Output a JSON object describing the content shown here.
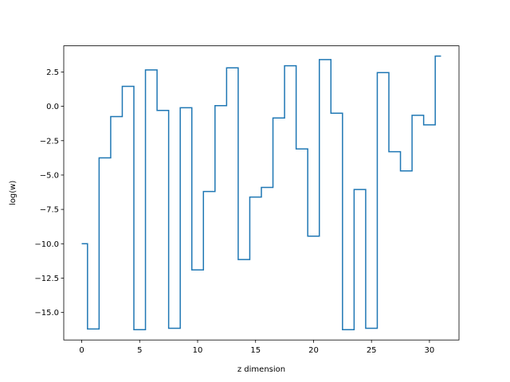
{
  "chart_data": {
    "type": "line",
    "step": "mid",
    "title": "",
    "xlabel": "z dimension",
    "ylabel": "log(w)",
    "xlim": [
      -1.55,
      32.55
    ],
    "ylim": [
      -17.0,
      4.4
    ],
    "xticks": [
      0,
      5,
      10,
      15,
      20,
      25,
      30
    ],
    "xtick_labels": [
      "0",
      "5",
      "10",
      "15",
      "20",
      "25",
      "30"
    ],
    "yticks": [
      2.5,
      0.0,
      -2.5,
      -5.0,
      -7.5,
      -10.0,
      -12.5,
      -15.0
    ],
    "ytick_labels": [
      "2.5",
      "0.0",
      "−2.5",
      "−5.0",
      "−7.5",
      "−10.0",
      "−12.5",
      "−15.0"
    ],
    "grid": false,
    "series": [
      {
        "color": "#1f77b4",
        "x": [
          0,
          1,
          2,
          3,
          4,
          5,
          6,
          7,
          8,
          9,
          10,
          11,
          12,
          13,
          14,
          15,
          16,
          17,
          18,
          19,
          20,
          21,
          22,
          23,
          24,
          25,
          26,
          27,
          28,
          29,
          30,
          31
        ],
        "y": [
          -10.0,
          -16.2,
          -3.75,
          -0.75,
          1.45,
          -16.25,
          2.65,
          -0.3,
          -16.15,
          -0.1,
          -11.9,
          -6.2,
          0.05,
          2.8,
          -11.15,
          -6.6,
          -5.9,
          -0.85,
          2.95,
          -3.1,
          -9.45,
          3.4,
          -0.5,
          -16.25,
          -6.05,
          -16.15,
          2.45,
          -3.3,
          -4.7,
          -0.65,
          -1.35,
          3.65
        ]
      }
    ]
  }
}
